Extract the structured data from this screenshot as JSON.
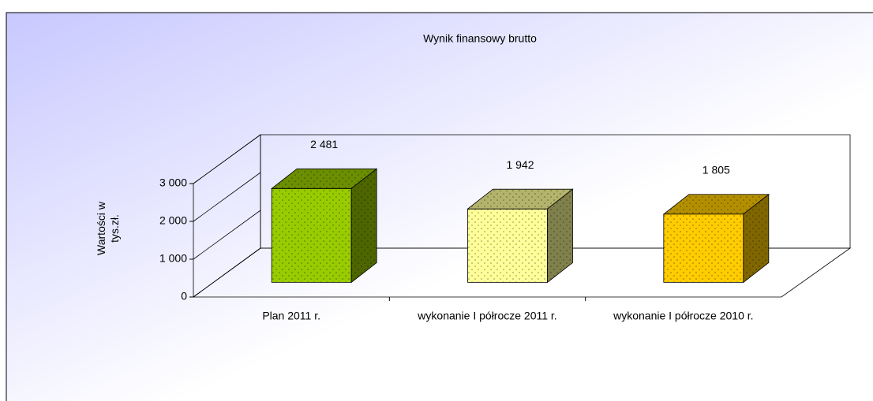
{
  "chart_data": {
    "type": "bar3d",
    "title": "Wynik finansowy brutto",
    "y_label": "Wartości w tys.zł.",
    "categories": [
      "Plan 2011 r.",
      "wykonanie I półrocze 2011 r.",
      "wykonanie I półrocze 2010 r."
    ],
    "values": [
      2481,
      1942,
      1805
    ],
    "value_labels": [
      "2 481",
      "1 942",
      "1 805"
    ],
    "colors": [
      "#99cc00",
      "#ffff99",
      "#ffcc00"
    ],
    "ylim": [
      0,
      3000
    ],
    "yticks": [
      0,
      {
        "value": 1000,
        "label": "1 000"
      },
      {
        "value": 2000,
        "label": "2 000"
      },
      {
        "value": 3000,
        "label": "3 000"
      }
    ]
  }
}
